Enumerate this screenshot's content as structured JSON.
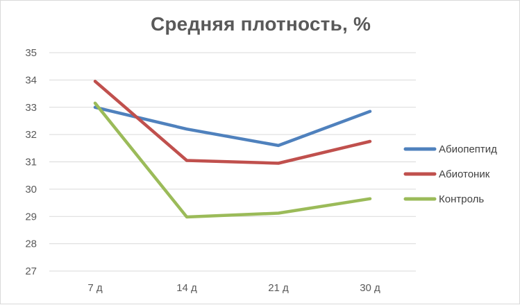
{
  "chart_data": {
    "type": "line",
    "title": "Средняя плотность, %",
    "categories": [
      "7 д",
      "14 д",
      "21 д",
      "30 д"
    ],
    "series": [
      {
        "name": "Абиопептид",
        "color": "#4f81bd",
        "values": [
          33.0,
          32.2,
          31.6,
          32.85
        ]
      },
      {
        "name": "Абиотоник",
        "color": "#c0504d",
        "values": [
          33.95,
          31.05,
          30.95,
          31.75
        ]
      },
      {
        "name": "Контроль",
        "color": "#9bbb59",
        "values": [
          33.15,
          28.98,
          29.12,
          29.65
        ]
      }
    ],
    "ylim": [
      27,
      35
    ],
    "yticks": [
      27,
      28,
      29,
      30,
      31,
      32,
      33,
      34,
      35
    ],
    "grid": true,
    "legend": "right",
    "xlabel": "",
    "ylabel": ""
  }
}
